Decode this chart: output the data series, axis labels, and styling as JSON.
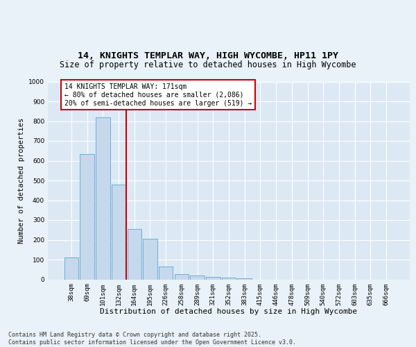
{
  "title1": "14, KNIGHTS TEMPLAR WAY, HIGH WYCOMBE, HP11 1PY",
  "title2": "Size of property relative to detached houses in High Wycombe",
  "xlabel": "Distribution of detached houses by size in High Wycombe",
  "ylabel": "Number of detached properties",
  "categories": [
    "38sqm",
    "69sqm",
    "101sqm",
    "132sqm",
    "164sqm",
    "195sqm",
    "226sqm",
    "258sqm",
    "289sqm",
    "321sqm",
    "352sqm",
    "383sqm",
    "415sqm",
    "446sqm",
    "478sqm",
    "509sqm",
    "540sqm",
    "572sqm",
    "603sqm",
    "635sqm",
    "666sqm"
  ],
  "values": [
    110,
    635,
    820,
    480,
    255,
    207,
    65,
    27,
    20,
    13,
    9,
    7,
    0,
    0,
    0,
    0,
    0,
    0,
    0,
    0,
    0
  ],
  "bar_facecolor": "#c5d8ec",
  "bar_edgecolor": "#6aaed6",
  "vline_x": 3.5,
  "vline_color": "#cc0000",
  "annotation_text": "14 KNIGHTS TEMPLAR WAY: 171sqm\n← 80% of detached houses are smaller (2,086)\n20% of semi-detached houses are larger (519) →",
  "ylim": [
    0,
    1000
  ],
  "yticks": [
    0,
    100,
    200,
    300,
    400,
    500,
    600,
    700,
    800,
    900,
    1000
  ],
  "plot_bg": "#dce9f5",
  "fig_bg": "#e8f2f8",
  "grid_color": "#ffffff",
  "footer": "Contains HM Land Registry data © Crown copyright and database right 2025.\nContains public sector information licensed under the Open Government Licence v3.0.",
  "title1_fontsize": 9.5,
  "title2_fontsize": 8.5,
  "xlabel_fontsize": 8,
  "ylabel_fontsize": 7.5,
  "tick_fontsize": 6.5,
  "ann_fontsize": 7,
  "footer_fontsize": 6
}
